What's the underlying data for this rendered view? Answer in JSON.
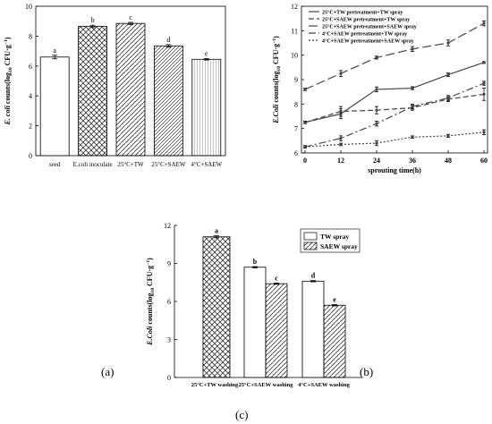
{
  "panel_labels": {
    "a": "(a)",
    "b": "(b)",
    "c": "(c)"
  },
  "chart_data": [
    {
      "id": "a",
      "type": "bar",
      "ylabel_main": "E. coli",
      "ylabel_rest": " counts(log",
      "ylabel_sub": "10",
      "ylabel_unit": " CFU·g",
      "ylabel_sup": "−1",
      "ylabel_close": ")",
      "ylim": [
        0,
        10
      ],
      "yticks": [
        0,
        2,
        4,
        6,
        8,
        10
      ],
      "categories": [
        "seed",
        "E.coli inoculate",
        "25°C+TW",
        "25°C+SAEW",
        "4°C+SAEW"
      ],
      "values": [
        6.6,
        8.65,
        8.85,
        7.35,
        6.45
      ],
      "errors": [
        0.12,
        0.08,
        0.07,
        0.08,
        0.05
      ],
      "letters": [
        "a",
        "b",
        "c",
        "d",
        "e"
      ],
      "patterns": [
        "none",
        "cross",
        "diag",
        "diag-dense",
        "vert"
      ]
    },
    {
      "id": "b",
      "type": "line",
      "xlabel": "sprouting time(h)",
      "ylabel_main": "E.Coli",
      "ylabel_rest": " counts(log",
      "ylabel_sub": "10",
      "ylabel_unit": " CFU·g",
      "ylabel_sup": "−1",
      "ylabel_close": ")",
      "x": [
        0,
        12,
        24,
        36,
        48,
        60
      ],
      "xlim": [
        0,
        60
      ],
      "ylim": [
        6,
        12
      ],
      "yticks": [
        6,
        7,
        8,
        9,
        10,
        11,
        12
      ],
      "legend_placement": "top-left",
      "series": [
        {
          "name": "25°C+TW pretreatment+TW spray",
          "values": [
            7.25,
            7.6,
            8.6,
            8.65,
            9.2,
            9.7
          ],
          "errors": [
            0.05,
            0.2,
            0.1,
            0.06,
            0.07,
            0.04
          ],
          "dash": "none"
        },
        {
          "name": "25°C+SAEW pretreatment+TW spray",
          "values": [
            7.25,
            7.7,
            7.75,
            7.85,
            8.2,
            8.4
          ],
          "errors": [
            0.05,
            0.2,
            0.15,
            0.1,
            0.1,
            0.25
          ],
          "dash": "6,3"
        },
        {
          "name": "25°C+SAEW pretreatment+SAEW spray",
          "values": [
            8.6,
            9.25,
            9.9,
            10.25,
            10.5,
            11.3
          ],
          "errors": [
            0.05,
            0.12,
            0.06,
            0.1,
            0.12,
            0.1
          ],
          "dash": "10,4"
        },
        {
          "name": "4°C+SAEW pretreatment+TW spray",
          "values": [
            6.25,
            6.6,
            7.2,
            7.9,
            8.25,
            8.85
          ],
          "errors": [
            0.05,
            0.1,
            0.1,
            0.1,
            0.1,
            0.08
          ],
          "dash": "8,3,2,3"
        },
        {
          "name": "4°C+SAEW pretreatment+SAEW spray",
          "values": [
            6.25,
            6.35,
            6.4,
            6.65,
            6.7,
            6.85
          ],
          "errors": [
            0.05,
            0.05,
            0.1,
            0.05,
            0.06,
            0.1
          ],
          "dash": "2,2"
        }
      ]
    },
    {
      "id": "c",
      "type": "bar",
      "ylabel_main": "E.Coli",
      "ylabel_rest": " counts(log",
      "ylabel_sub": "10",
      "ylabel_unit": " CFU·g",
      "ylabel_sup": "−1",
      "ylabel_close": ")",
      "ylim": [
        0,
        12
      ],
      "yticks": [
        0,
        3,
        6,
        9,
        12
      ],
      "categories": [
        "25°C+TW washing",
        "25°C+SAEW washing",
        "4°C+SAEW washing"
      ],
      "legend_placement": "top-right",
      "series": [
        {
          "name": "TW spray",
          "pattern": "none"
        },
        {
          "name": "SAEW spray",
          "pattern": "diag"
        }
      ],
      "bars": [
        {
          "group": 0,
          "value": 11.1,
          "error": 0.08,
          "letter": "a",
          "pattern": "cross"
        },
        {
          "group": 1,
          "value": 8.7,
          "error": 0.05,
          "letter": "b",
          "pattern": "none"
        },
        {
          "group": 1,
          "value": 7.4,
          "error": 0.05,
          "letter": "c",
          "pattern": "diag"
        },
        {
          "group": 2,
          "value": 7.6,
          "error": 0.05,
          "letter": "d",
          "pattern": "none"
        },
        {
          "group": 2,
          "value": 5.7,
          "error": 0.05,
          "letter": "e",
          "pattern": "diag"
        }
      ]
    }
  ]
}
